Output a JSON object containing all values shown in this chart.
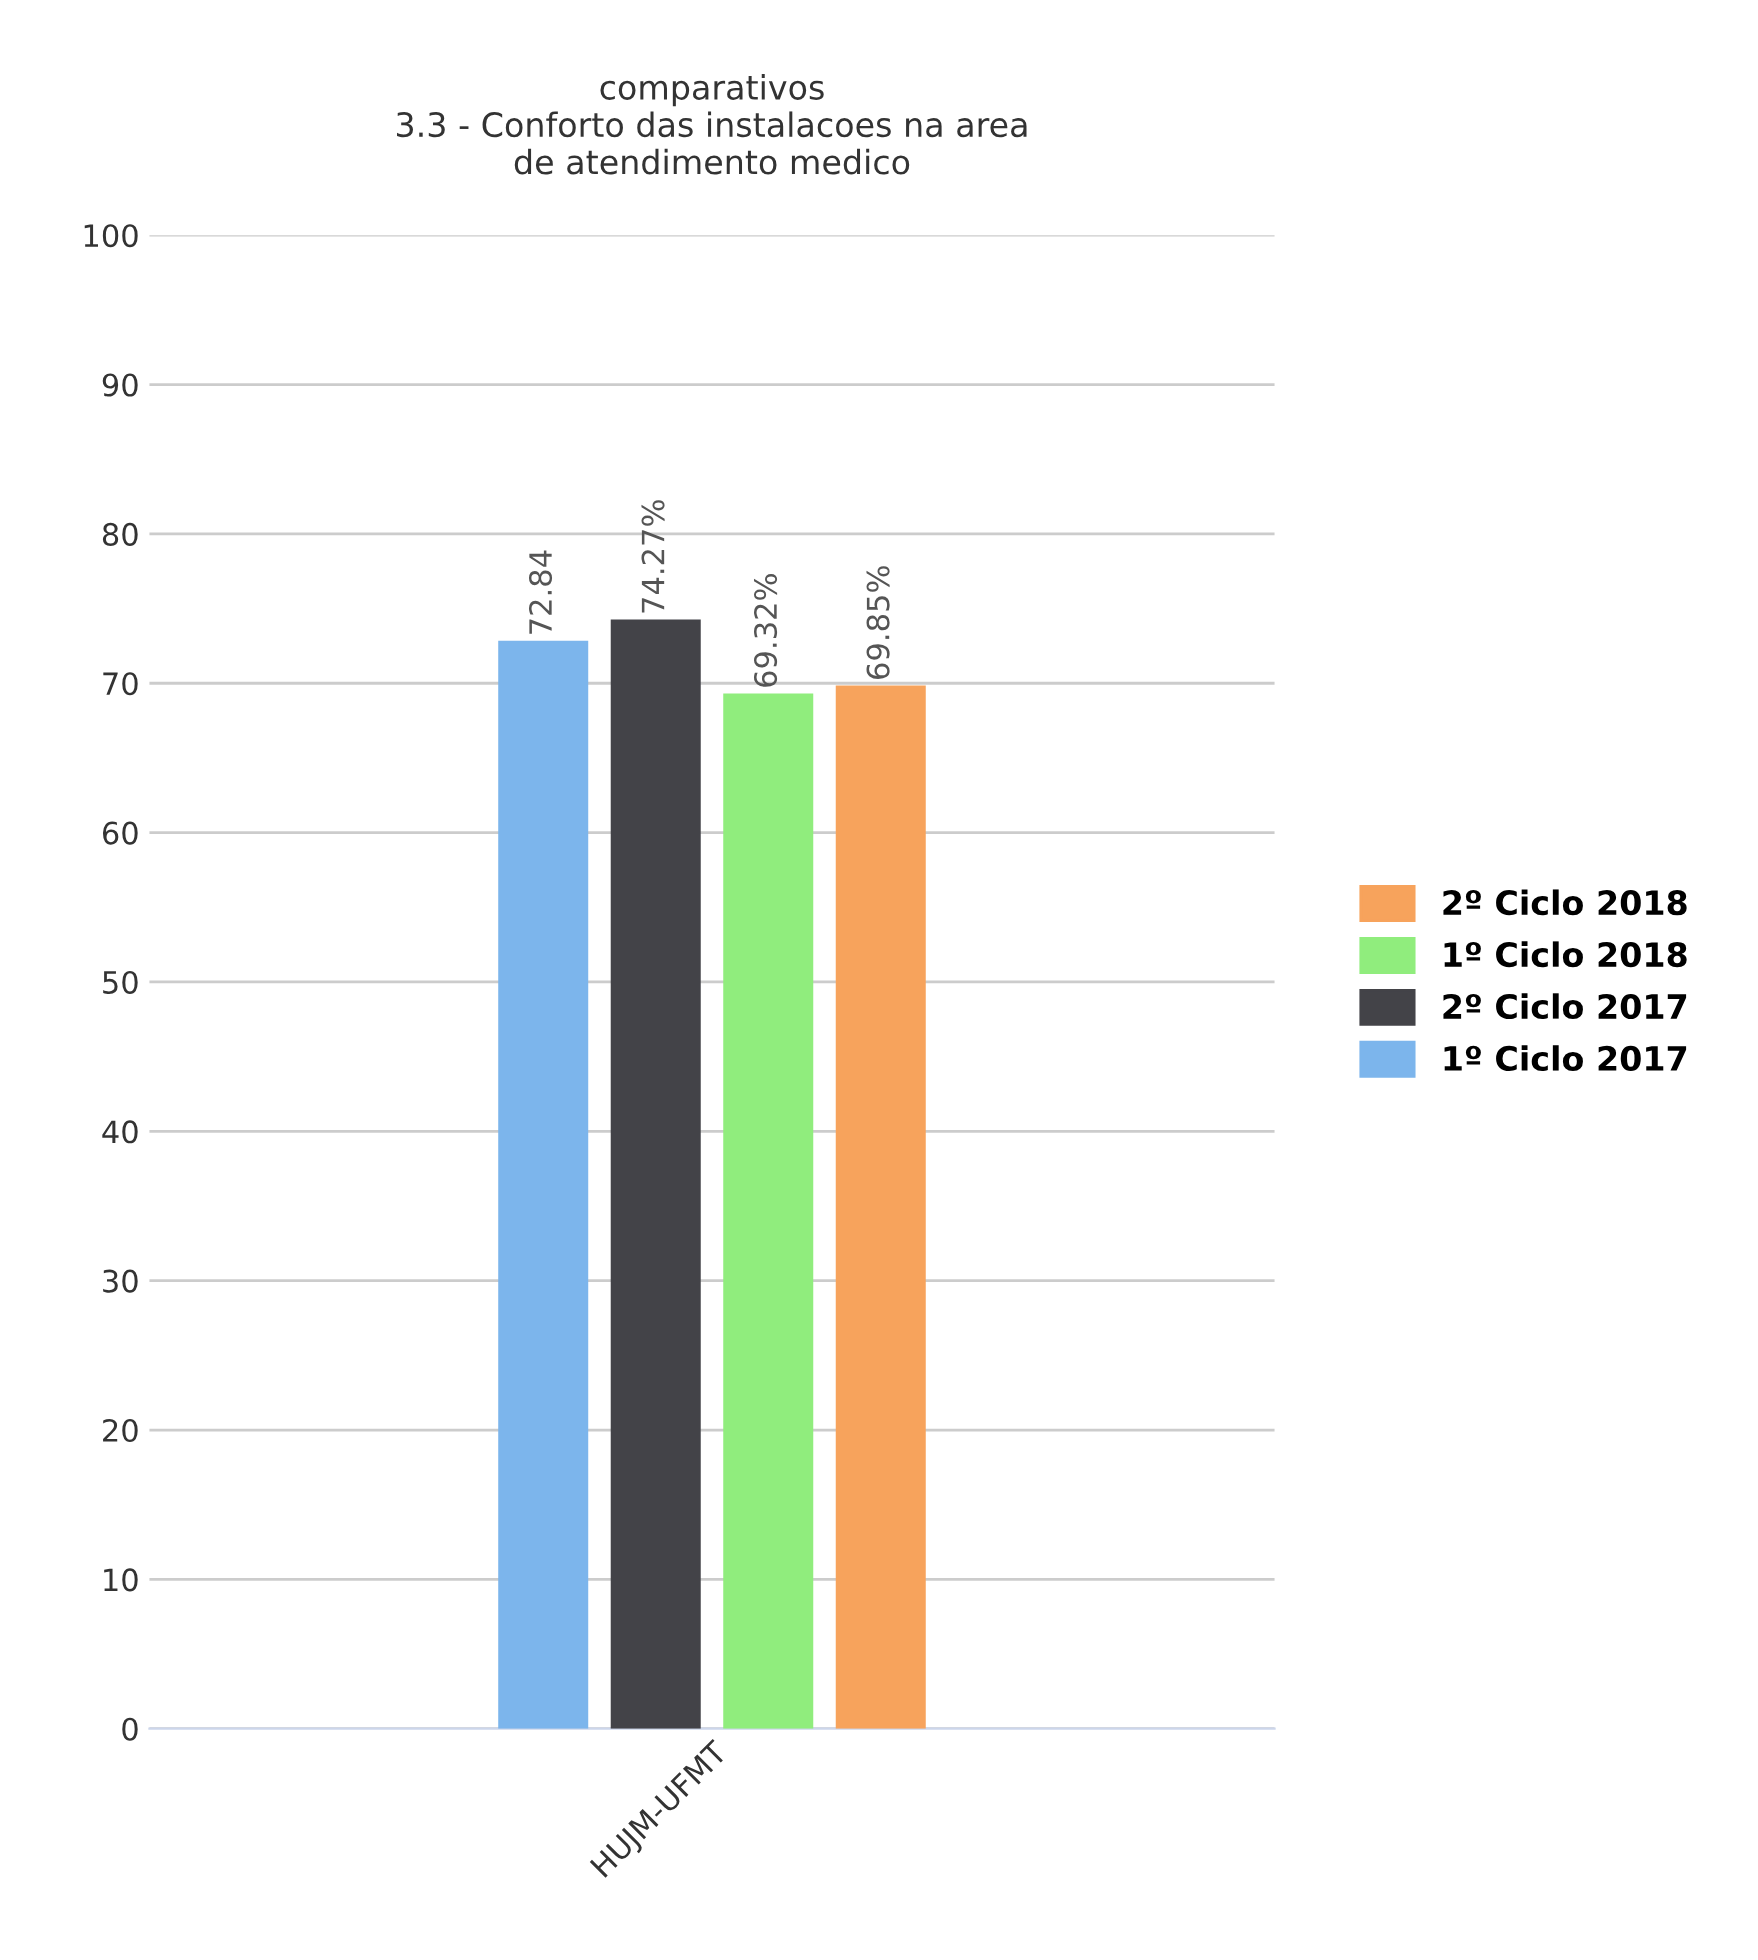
{
  "chart_data": {
    "type": "bar",
    "title": "comparativos\n3.3 - Conforto das instalacoes na area\nde atendimento medico",
    "categories": [
      "HUJM-UFMT"
    ],
    "series": [
      {
        "name": "1º Ciclo 2017",
        "color": "#7cb5ec",
        "values": [
          72.84
        ],
        "value_labels": [
          "72.84"
        ]
      },
      {
        "name": "2º Ciclo 2017",
        "color": "#434348",
        "values": [
          74.27
        ],
        "value_labels": [
          "74.27%"
        ]
      },
      {
        "name": "1º Ciclo 2018",
        "color": "#90ed7d",
        "values": [
          69.32
        ],
        "value_labels": [
          "69.32%"
        ]
      },
      {
        "name": "2º Ciclo 2018",
        "color": "#f7a35c",
        "values": [
          69.85
        ],
        "value_labels": [
          "69.85%"
        ]
      }
    ],
    "ylim": [
      0,
      100
    ],
    "yticks": [
      0,
      10,
      20,
      30,
      40,
      50,
      60,
      70,
      80,
      90,
      100
    ],
    "grid": "y",
    "legend": "right"
  }
}
